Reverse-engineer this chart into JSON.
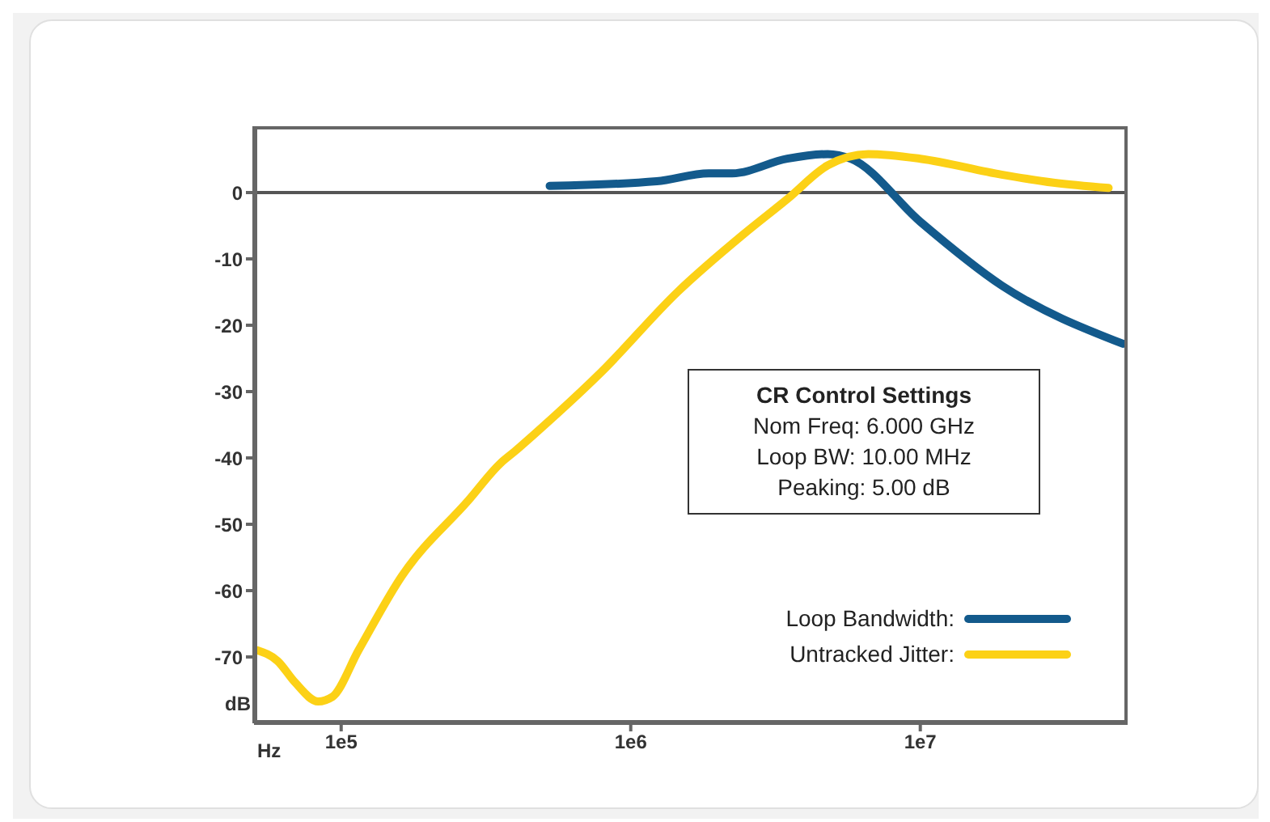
{
  "chart_data": {
    "type": "line",
    "xlabel": "Hz",
    "ylabel": "dB",
    "log": "x",
    "xlim": [
      50000,
      52000000
    ],
    "xticks": [
      {
        "value": 100000,
        "label": "1e5"
      },
      {
        "value": 1000000,
        "label": "1e6"
      },
      {
        "value": 10000000,
        "label": "1e7"
      }
    ],
    "ylim": [
      -80,
      10
    ],
    "yticks": [
      0,
      -10,
      -20,
      -30,
      -40,
      -50,
      -60,
      -70
    ],
    "legend": "bottom right",
    "line_style": "solid",
    "marker": "none",
    "ref_lines": [
      {
        "axis": "y",
        "value": 0,
        "color": "#555555"
      }
    ],
    "annotations": [
      "CR Control Settings",
      "Nom Freq: 6.000 GHz",
      "Loop BW: 10.00 MHz",
      "Peaking: 5.00 dB"
    ],
    "series": [
      {
        "name": "Loop Bandwidth:",
        "color": "#135a8c",
        "x": [
          525000,
          1230000,
          1860000,
          2240000,
          3470000,
          4790000,
          5750000,
          10000000,
          19100000,
          50100000
        ],
        "values": [
          1.0,
          1.7,
          2.9,
          2.9,
          5.1,
          5.8,
          5.1,
          -4.4,
          -14,
          -22.8
        ]
      },
      {
        "name": "Untracked Jitter:",
        "color": "#fcd116",
        "x": [
          51300,
          60300,
          69200,
          83200,
          93300,
          114800,
          162000,
          275000,
          355000,
          398000,
          457000,
          794000,
          1450000,
          2450000,
          3470000,
          4790000,
          6610000,
          10000000,
          19100000,
          28800000,
          44700000
        ],
        "values": [
          -69,
          -70.6,
          -73.8,
          -76.7,
          -76,
          -69,
          -57.8,
          -46.4,
          -40.8,
          -39,
          -36.7,
          -27,
          -15,
          -6.3,
          -1,
          4.1,
          5.8,
          5.1,
          2.7,
          1.5,
          0.7
        ]
      }
    ]
  }
}
